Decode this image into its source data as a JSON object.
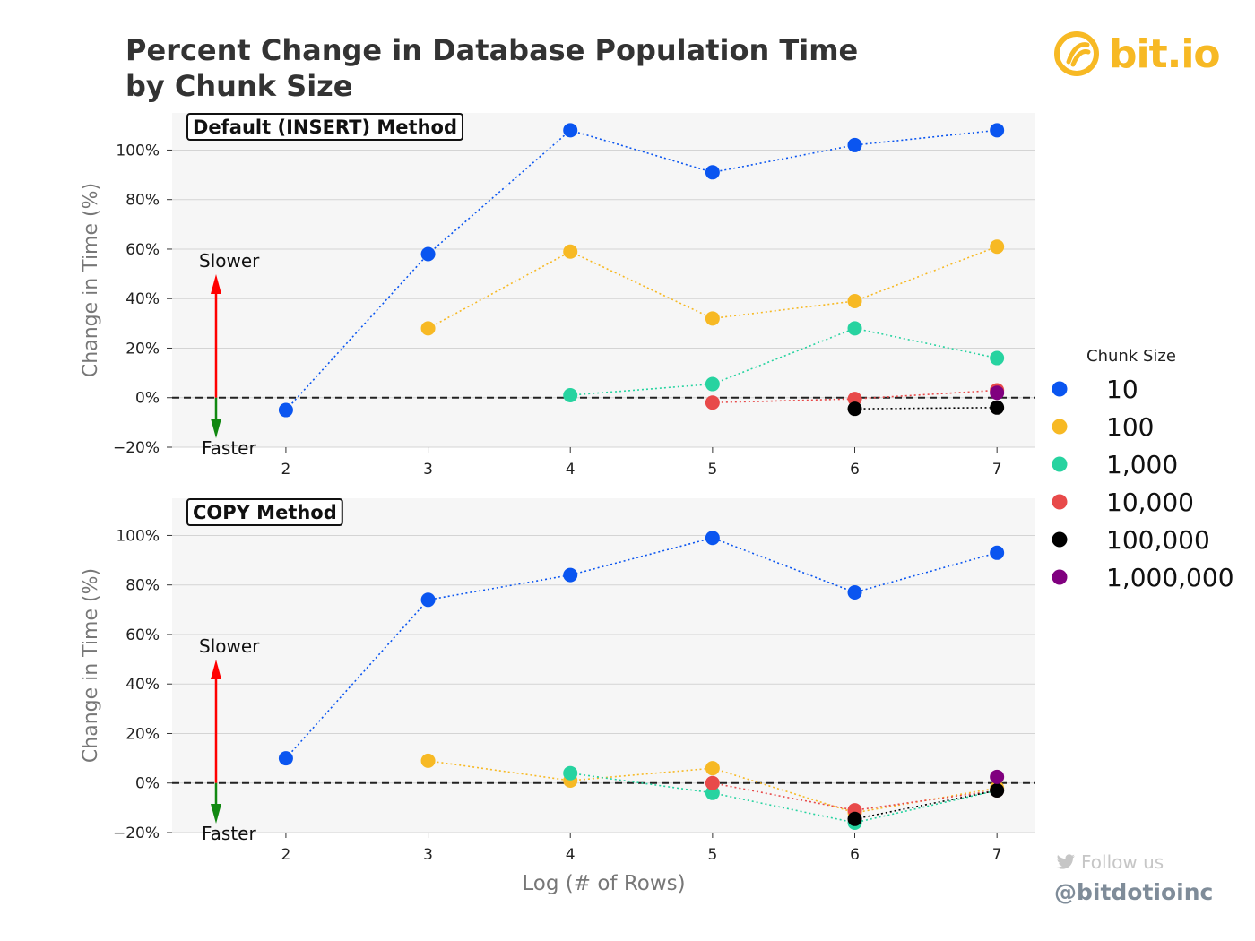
{
  "title": [
    "Percent Change in Database Population Time",
    "by Chunk Size"
  ],
  "brand": {
    "name": "bit.io",
    "icon": "bitio-logo-icon",
    "color": "#f7b924"
  },
  "social": {
    "follow": "Follow us",
    "handle": "@bitdotioinc",
    "icon": "twitter-bird-icon"
  },
  "annotations": {
    "slower": "Slower",
    "faster": "Faster"
  },
  "chart_data": [
    {
      "type": "scatter",
      "panel_label": "Default (INSERT) Method",
      "xlabel": "",
      "ylabel": "Change in Time (%)",
      "x_ticks": [
        2,
        3,
        4,
        5,
        6,
        7
      ],
      "y_ticks": [
        -20,
        0,
        20,
        40,
        60,
        80,
        100
      ],
      "y_tick_labels": [
        "−20%",
        "0%",
        "20%",
        "40%",
        "60%",
        "80%",
        "100%"
      ],
      "xlim": [
        1.2,
        7.27
      ],
      "ylim": [
        -20,
        115
      ],
      "reference_line_y": 0,
      "series": [
        {
          "name": "10",
          "color": "#0a55f0",
          "x": [
            2,
            3,
            4,
            5,
            6,
            7
          ],
          "values": [
            -5,
            58,
            108,
            91,
            102,
            108
          ]
        },
        {
          "name": "100",
          "color": "#f7b924",
          "x": [
            3,
            4,
            5,
            6,
            7
          ],
          "values": [
            28,
            59,
            32,
            39,
            61
          ]
        },
        {
          "name": "1,000",
          "color": "#27d3a0",
          "x": [
            4,
            5,
            6,
            7
          ],
          "values": [
            1,
            5.5,
            28,
            16
          ]
        },
        {
          "name": "10,000",
          "color": "#e84a4a",
          "x": [
            5,
            6,
            7
          ],
          "values": [
            -2,
            -0.5,
            3
          ]
        },
        {
          "name": "100,000",
          "color": "#000000",
          "x": [
            6,
            7
          ],
          "values": [
            -4.5,
            -4
          ]
        },
        {
          "name": "1,000,000",
          "color": "#80007f",
          "x": [
            7
          ],
          "values": [
            2
          ]
        }
      ]
    },
    {
      "type": "scatter",
      "panel_label": "COPY Method",
      "xlabel": "Log (# of Rows)",
      "ylabel": "Change in Time (%)",
      "x_ticks": [
        2,
        3,
        4,
        5,
        6,
        7
      ],
      "y_ticks": [
        -20,
        0,
        20,
        40,
        60,
        80,
        100
      ],
      "y_tick_labels": [
        "−20%",
        "0%",
        "20%",
        "40%",
        "60%",
        "80%",
        "100%"
      ],
      "xlim": [
        1.2,
        7.27
      ],
      "ylim": [
        -20,
        115
      ],
      "reference_line_y": 0,
      "series": [
        {
          "name": "10",
          "color": "#0a55f0",
          "x": [
            2,
            3,
            4,
            5,
            6,
            7
          ],
          "values": [
            10,
            74,
            84,
            99,
            77,
            93
          ]
        },
        {
          "name": "100",
          "color": "#f7b924",
          "x": [
            3,
            4,
            5,
            6,
            7
          ],
          "values": [
            9,
            1,
            6,
            -12,
            -2
          ]
        },
        {
          "name": "1,000",
          "color": "#27d3a0",
          "x": [
            4,
            5,
            6,
            7
          ],
          "values": [
            4,
            -4,
            -16,
            -3
          ]
        },
        {
          "name": "10,000",
          "color": "#e84a4a",
          "x": [
            5,
            6,
            7
          ],
          "values": [
            0,
            -11,
            -3
          ]
        },
        {
          "name": "100,000",
          "color": "#000000",
          "x": [
            6,
            7
          ],
          "values": [
            -14.5,
            -3
          ]
        },
        {
          "name": "1,000,000",
          "color": "#80007f",
          "x": [
            7
          ],
          "values": [
            2.5
          ]
        }
      ]
    }
  ],
  "legend": {
    "title": "Chunk Size",
    "placement": "right",
    "entries": [
      "10",
      "100",
      "1,000",
      "10,000",
      "100,000",
      "1,000,000"
    ]
  }
}
